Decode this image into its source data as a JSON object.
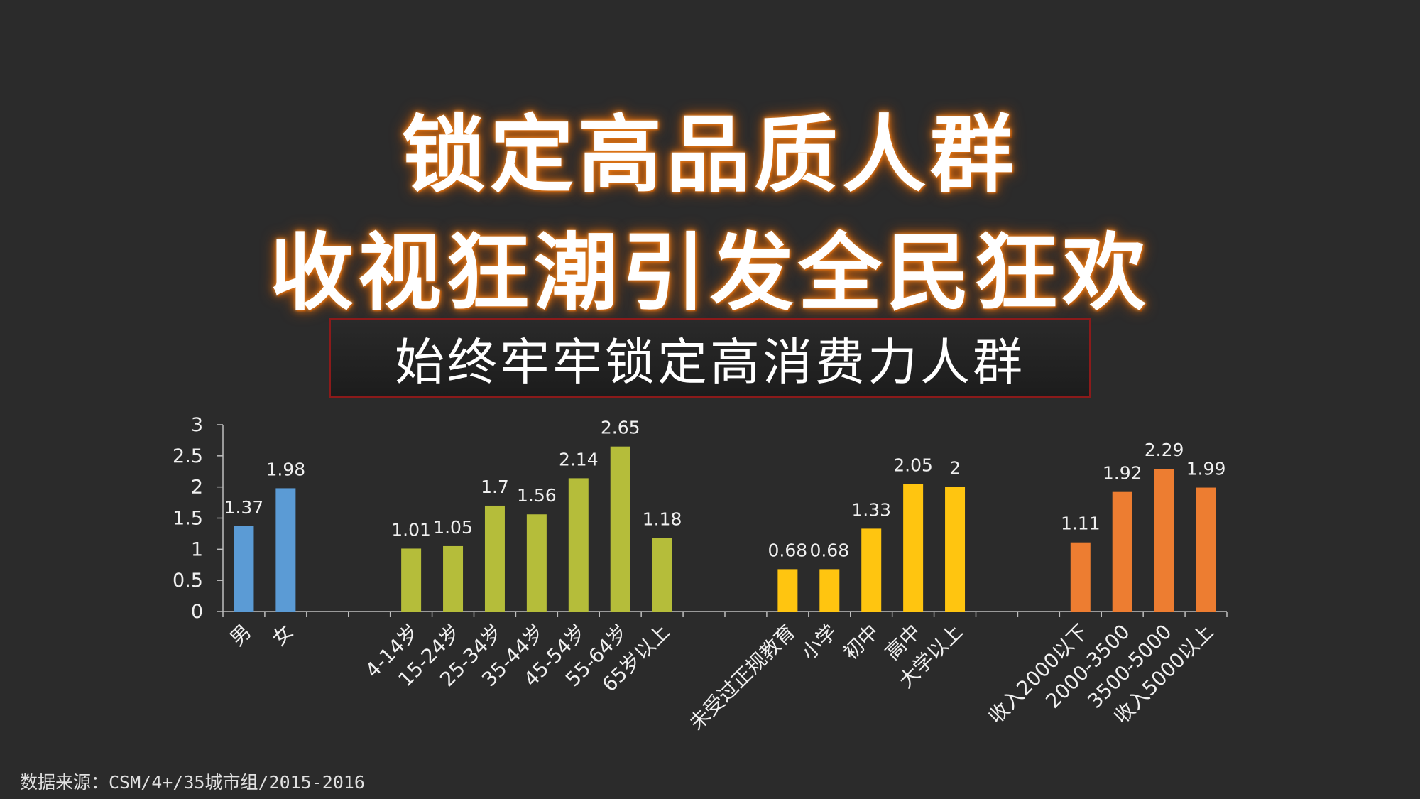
{
  "title_line1": "锁定高品质人群",
  "title_line2": "收视狂潮引发全民狂欢",
  "subtitle": "始终牢牢锁定高消费力人群",
  "source": "数据来源：CSM/4+/35城市组/2015-2016",
  "chart_data": {
    "type": "bar",
    "ylim": [
      0,
      3
    ],
    "yticks": [
      "0",
      "0.5",
      "1",
      "1.5",
      "2",
      "2.5",
      "3"
    ],
    "groups": [
      {
        "color": "#5b9bd5",
        "categories": [
          "男",
          "女"
        ],
        "values": [
          1.37,
          1.98
        ],
        "labels": [
          "1.37",
          "1.98"
        ]
      },
      {
        "color": "#b5bd3a",
        "categories": [
          "4-14岁",
          "15-24岁",
          "25-34岁",
          "35-44岁",
          "45-54岁",
          "55-64岁",
          "65岁以上"
        ],
        "values": [
          1.01,
          1.05,
          1.7,
          1.56,
          2.14,
          2.65,
          1.18
        ],
        "labels": [
          "1.01",
          "1.05",
          "1.7",
          "1.56",
          "2.14",
          "2.65",
          "1.18"
        ]
      },
      {
        "color": "#ffc510",
        "categories": [
          "未受过正规教育",
          "小学",
          "初中",
          "高中",
          "大学以上"
        ],
        "values": [
          0.68,
          0.68,
          1.33,
          2.05,
          2
        ],
        "labels": [
          "0.68",
          "0.68",
          "1.33",
          "2.05",
          "2"
        ]
      },
      {
        "color": "#ed7d31",
        "categories": [
          "收入2000以下",
          "2000-3500",
          "3500-5000",
          "收入5000以上"
        ],
        "values": [
          1.11,
          1.92,
          2.29,
          1.99
        ],
        "labels": [
          "1.11",
          "1.92",
          "2.29",
          "1.99"
        ]
      }
    ]
  }
}
